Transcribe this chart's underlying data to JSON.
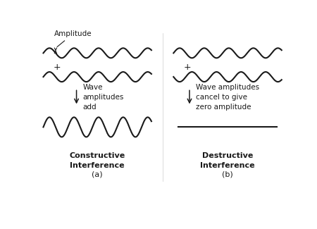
{
  "background_color": "#ffffff",
  "wave_color": "#1a1a1a",
  "wave_lw": 1.5,
  "amplitude_small": 0.28,
  "amplitude_large": 0.56,
  "freq_small": 2.0,
  "freq_large": 2.0,
  "labels": {
    "amplitude": "Amplitude",
    "plus_left": "+",
    "plus_right": "+",
    "arrow_left": "Wave\namplitudes\nadd",
    "arrow_right": "Wave amplitudes\ncancel to give\nzero amplitude",
    "constructive": "Constructive\nInterference",
    "destructive": "Destructive\nInterference",
    "a": "(a)",
    "b": "(b)"
  },
  "font_sizes": {
    "wave_text": 7.5,
    "plus": 9,
    "sub_label": 8,
    "amplitude_label": 7.5
  }
}
